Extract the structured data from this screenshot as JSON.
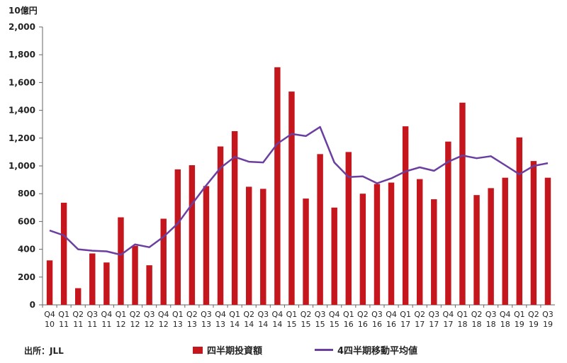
{
  "unit_label": "10億円",
  "source": "出所：JLL",
  "colors": {
    "bar": "#C4161C",
    "line": "#6B3FA0",
    "axis": "#666666"
  },
  "chart_data": {
    "type": "bar",
    "ylim": [
      0,
      2000
    ],
    "yticks": [
      "0",
      "200",
      "400",
      "600",
      "800",
      "1,000",
      "1,200",
      "1,400",
      "1,600",
      "1,800",
      "2,000"
    ],
    "categories": [
      {
        "q": "Q4",
        "y": "10"
      },
      {
        "q": "Q1",
        "y": "11"
      },
      {
        "q": "Q2",
        "y": "11"
      },
      {
        "q": "Q3",
        "y": "11"
      },
      {
        "q": "Q4",
        "y": "11"
      },
      {
        "q": "Q1",
        "y": "12"
      },
      {
        "q": "Q2",
        "y": "12"
      },
      {
        "q": "Q3",
        "y": "12"
      },
      {
        "q": "Q4",
        "y": "12"
      },
      {
        "q": "Q1",
        "y": "13"
      },
      {
        "q": "Q2",
        "y": "13"
      },
      {
        "q": "Q3",
        "y": "13"
      },
      {
        "q": "Q4",
        "y": "13"
      },
      {
        "q": "Q1",
        "y": "14"
      },
      {
        "q": "Q2",
        "y": "14"
      },
      {
        "q": "Q3",
        "y": "14"
      },
      {
        "q": "Q4",
        "y": "14"
      },
      {
        "q": "Q1",
        "y": "15"
      },
      {
        "q": "Q2",
        "y": "15"
      },
      {
        "q": "Q3",
        "y": "15"
      },
      {
        "q": "Q4",
        "y": "15"
      },
      {
        "q": "Q1",
        "y": "16"
      },
      {
        "q": "Q2",
        "y": "16"
      },
      {
        "q": "Q3",
        "y": "16"
      },
      {
        "q": "Q4",
        "y": "16"
      },
      {
        "q": "Q1",
        "y": "17"
      },
      {
        "q": "Q2",
        "y": "17"
      },
      {
        "q": "Q3",
        "y": "17"
      },
      {
        "q": "Q4",
        "y": "17"
      },
      {
        "q": "Q1",
        "y": "18"
      },
      {
        "q": "Q2",
        "y": "18"
      },
      {
        "q": "Q3",
        "y": "18"
      },
      {
        "q": "Q4",
        "y": "18"
      },
      {
        "q": "Q1",
        "y": "19"
      },
      {
        "q": "Q2",
        "y": "19"
      },
      {
        "q": "Q3",
        "y": "19"
      }
    ],
    "series": [
      {
        "name": "四半期投資額",
        "type": "bar",
        "values": [
          320,
          735,
          120,
          370,
          305,
          630,
          425,
          285,
          620,
          975,
          1005,
          855,
          1140,
          1250,
          850,
          835,
          1710,
          1535,
          765,
          1085,
          700,
          1100,
          800,
          870,
          880,
          1285,
          905,
          760,
          1175,
          1455,
          790,
          840,
          915,
          1205,
          1035,
          915
        ]
      },
      {
        "name": "4四半期移動平均値",
        "type": "line",
        "values": [
          535,
          500,
          400,
          390,
          385,
          360,
          435,
          415,
          490,
          585,
          725,
          860,
          985,
          1065,
          1030,
          1025,
          1160,
          1230,
          1215,
          1280,
          1025,
          920,
          925,
          875,
          910,
          960,
          990,
          965,
          1030,
          1075,
          1055,
          1070,
          1005,
          940,
          1000,
          1020
        ]
      }
    ]
  }
}
